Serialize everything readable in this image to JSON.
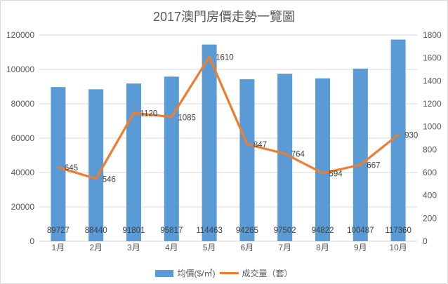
{
  "title": "2017澳門房價走勢一覽圖",
  "chart_data": {
    "type": "combo-bar-line",
    "title": "2017澳門房價走勢一覽圖",
    "categories": [
      "1月",
      "2月",
      "3月",
      "4月",
      "5月",
      "6月",
      "7月",
      "8月",
      "9月",
      "10月"
    ],
    "series": [
      {
        "name": "均價($/㎡)",
        "type": "bar",
        "axis": "left",
        "color": "#5B9BD5",
        "values": [
          89727,
          88440,
          91801,
          95817,
          114463,
          94265,
          97502,
          94822,
          100487,
          117360
        ]
      },
      {
        "name": "成交量（套）",
        "type": "line",
        "axis": "right",
        "color": "#ED7D31",
        "values": [
          645,
          546,
          1120,
          1085,
          1610,
          847,
          764,
          594,
          667,
          930
        ]
      }
    ],
    "left_axis": {
      "min": 0,
      "max": 120000,
      "step": 20000,
      "ticks": [
        0,
        20000,
        40000,
        60000,
        80000,
        100000,
        120000
      ]
    },
    "right_axis": {
      "min": 0,
      "max": 1800,
      "step": 200,
      "ticks": [
        0,
        200,
        400,
        600,
        800,
        1000,
        1200,
        1400,
        1600,
        1800
      ]
    },
    "grid": true,
    "data_labels": true,
    "legend_position": "bottom",
    "colors": {
      "grid": "#D9D9D9",
      "axis_text": "#595959",
      "data_label_text": "#404040",
      "title_text": "#595959",
      "background": "#FFFFFF",
      "border": "#D9D9D9"
    }
  }
}
